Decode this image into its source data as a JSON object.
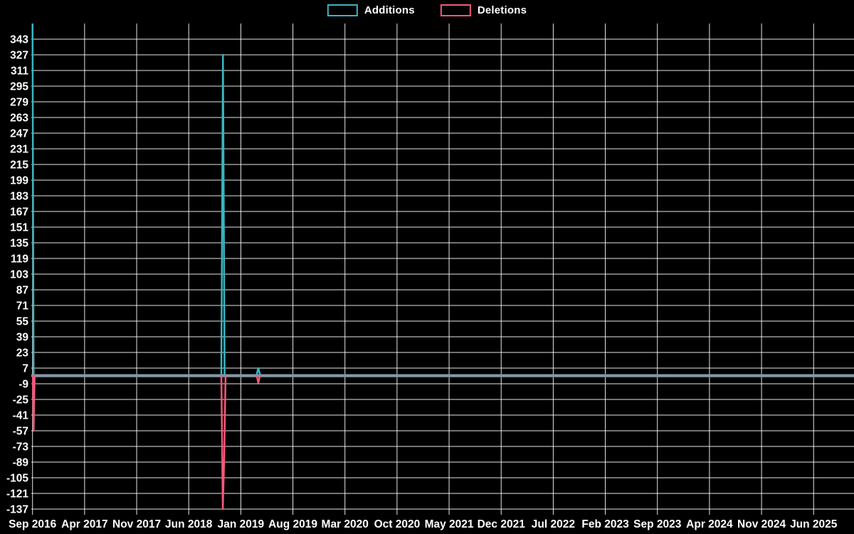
{
  "page": {
    "background": "#000000"
  },
  "legend": {
    "items": [
      {
        "label": "Additions",
        "color": "#3ab5c1"
      },
      {
        "label": "Deletions",
        "color": "#f4587a"
      }
    ]
  },
  "chart_data": {
    "type": "line",
    "title": "",
    "description": "Weekly additions and deletions line chart on black background; values hover at ~0 for nearly all weeks (rendered as a merged gray-blue baseline), with large spikes at Sep 2016 and ~Nov 2018 and a tiny blip ~Mar 2019.",
    "x_axis": {
      "tick_labels": [
        "Sep 2016",
        "Apr 2017",
        "Nov 2017",
        "Jun 2018",
        "Jan 2019",
        "Aug 2019",
        "Mar 2020",
        "Oct 2020",
        "May 2021",
        "Dec 2021",
        "Jul 2022",
        "Feb 2023",
        "Sep 2023",
        "Apr 2024",
        "Nov 2024",
        "Jun 2025"
      ],
      "tick_interval": "7 months"
    },
    "y_axis": {
      "ticks": [
        343,
        327,
        311,
        295,
        279,
        263,
        247,
        231,
        215,
        199,
        183,
        167,
        151,
        135,
        119,
        103,
        87,
        71,
        55,
        39,
        23,
        7,
        -9,
        -25,
        -41,
        -57,
        -73,
        -89,
        -105,
        -121,
        -137
      ],
      "step": 16,
      "top_value_at_plot_edge": 359
    },
    "x_unit_note": "spike point x-positions are fractions of the span from the first to the last x tick",
    "series": [
      {
        "name": "Additions",
        "color": "#3ab5c1",
        "baseline_value": 0,
        "spikes": [
          {
            "approx_date": "Sep 2016",
            "peak": 359,
            "clipped_at_top": true,
            "points": [
              [
                0.0,
                359
              ],
              [
                0.0014,
                0
              ]
            ]
          },
          {
            "approx_date": "Nov 2018",
            "peak": 327,
            "points": [
              [
                0.2417,
                0
              ],
              [
                0.2438,
                327
              ],
              [
                0.2459,
                0
              ]
            ]
          },
          {
            "approx_date": "Mar 2019",
            "peak": 7,
            "points": [
              [
                0.2868,
                0
              ],
              [
                0.2891,
                7
              ],
              [
                0.2914,
                0
              ]
            ]
          }
        ]
      },
      {
        "name": "Deletions",
        "color": "#f4587a",
        "baseline_value": 0,
        "spikes": [
          {
            "approx_date": "Sep 2016",
            "peak": -57,
            "points": [
              [
                0.0005,
                0
              ],
              [
                0.0014,
                -57
              ],
              [
                0.0027,
                0
              ]
            ]
          },
          {
            "approx_date": "Nov 2018",
            "peak": -137,
            "points": [
              [
                0.2417,
                0
              ],
              [
                0.2436,
                -137
              ],
              [
                0.2454,
                -85
              ],
              [
                0.2472,
                0
              ]
            ]
          },
          {
            "approx_date": "Mar 2019",
            "peak": -8,
            "points": [
              [
                0.2868,
                0
              ],
              [
                0.2891,
                -8
              ],
              [
                0.2914,
                0
              ]
            ]
          }
        ]
      }
    ],
    "colors": {
      "grid": "rgba(255,255,255,0.9)",
      "baseline_overlap": "#8298a5",
      "text": "#ffffff",
      "background": "#000000"
    },
    "layout_hints": {
      "grid": true,
      "legend_position": "top-center"
    }
  }
}
